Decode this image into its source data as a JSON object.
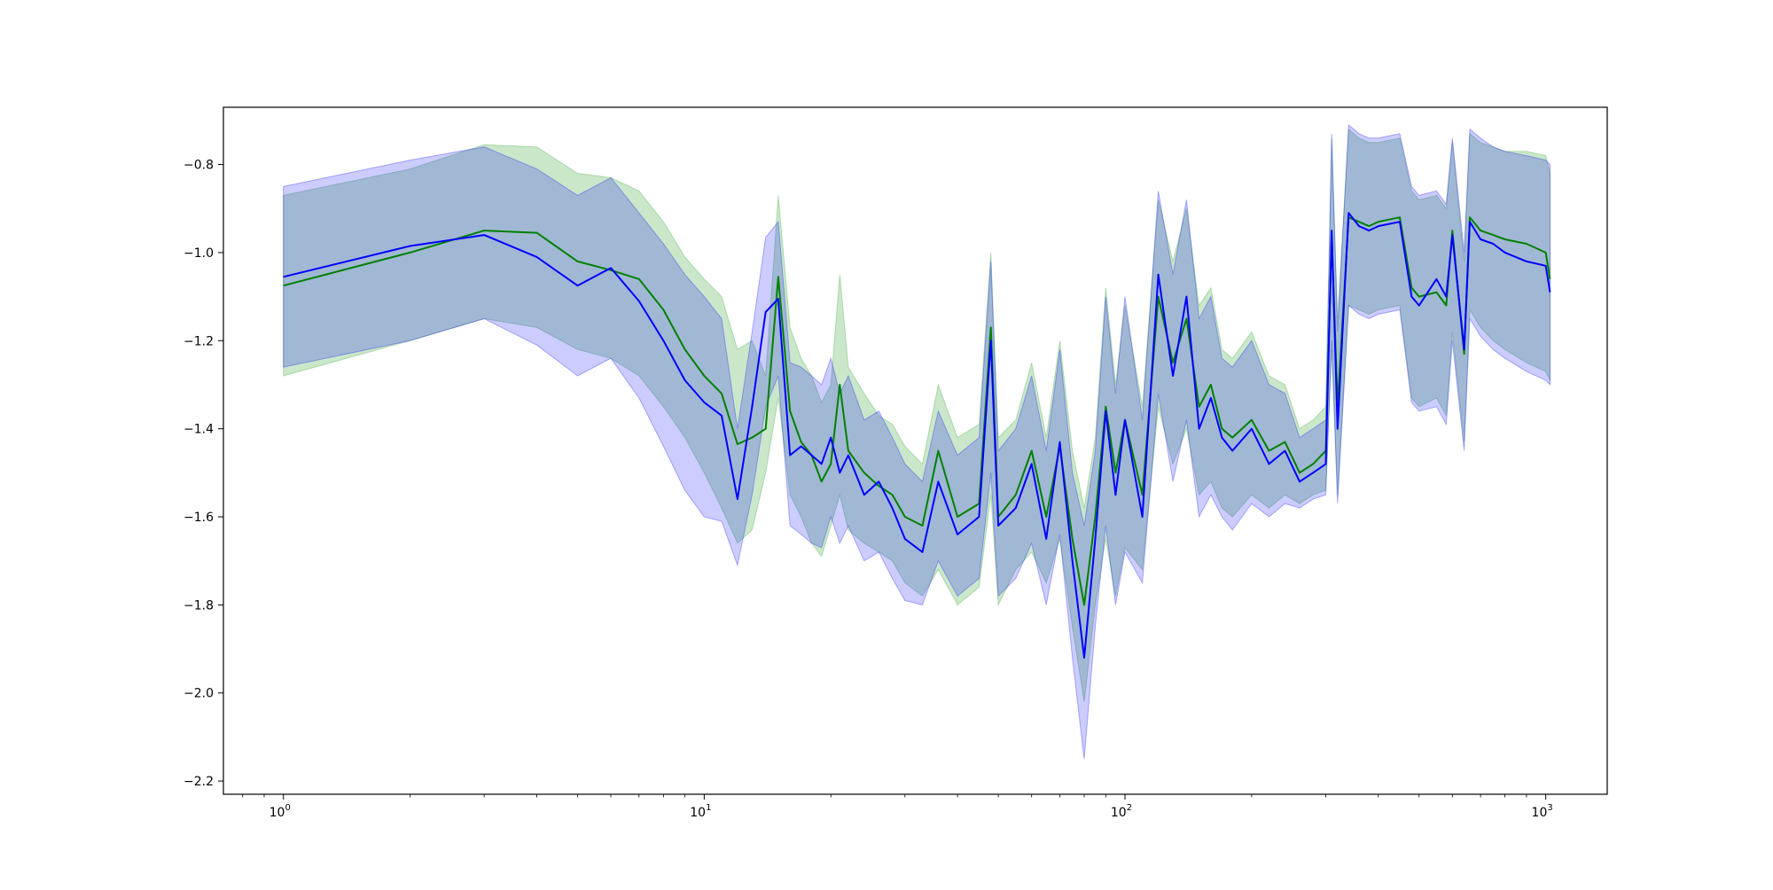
{
  "chart_data": {
    "type": "line",
    "title": "",
    "xlabel": "",
    "ylabel": "",
    "xscale": "log",
    "xlim": [
      0.72,
      1400
    ],
    "ylim": [
      -2.23,
      -0.67
    ],
    "grid": false,
    "x_ticks": [
      {
        "value": 1,
        "base": "10",
        "exp": "0"
      },
      {
        "value": 10,
        "base": "10",
        "exp": "1"
      },
      {
        "value": 100,
        "base": "10",
        "exp": "2"
      },
      {
        "value": 1000,
        "base": "10",
        "exp": "3"
      }
    ],
    "y_ticks": [
      {
        "value": -0.8,
        "label": "−0.8"
      },
      {
        "value": -1.0,
        "label": "−1.0"
      },
      {
        "value": -1.2,
        "label": "−1.2"
      },
      {
        "value": -1.4,
        "label": "−1.4"
      },
      {
        "value": -1.6,
        "label": "−1.6"
      },
      {
        "value": -1.8,
        "label": "−1.8"
      },
      {
        "value": -2.0,
        "label": "−2.0"
      },
      {
        "value": -2.2,
        "label": "−2.2"
      }
    ],
    "series": [
      {
        "color": "#008000",
        "band_color": "#2ca02c",
        "band_opacity": 0.25,
        "x": [
          1,
          2,
          3,
          4,
          5,
          6,
          7,
          8,
          9,
          10,
          11,
          12,
          13,
          14,
          15,
          16,
          17,
          18,
          19,
          20,
          21,
          22,
          24,
          26,
          28,
          30,
          33,
          36,
          40,
          45,
          48,
          50,
          55,
          60,
          65,
          70,
          75,
          80,
          85,
          90,
          95,
          100,
          110,
          120,
          130,
          140,
          150,
          160,
          170,
          180,
          200,
          220,
          240,
          260,
          280,
          300,
          310,
          320,
          340,
          360,
          380,
          400,
          450,
          480,
          500,
          550,
          580,
          600,
          640,
          660,
          700,
          750,
          800,
          900,
          1000,
          1024
        ],
        "y": [
          -1.075,
          -1.0,
          -0.95,
          -0.955,
          -1.02,
          -1.04,
          -1.06,
          -1.13,
          -1.22,
          -1.28,
          -1.32,
          -1.435,
          -1.42,
          -1.4,
          -1.055,
          -1.36,
          -1.43,
          -1.46,
          -1.52,
          -1.48,
          -1.3,
          -1.45,
          -1.5,
          -1.53,
          -1.55,
          -1.6,
          -1.62,
          -1.45,
          -1.6,
          -1.57,
          -1.17,
          -1.6,
          -1.55,
          -1.45,
          -1.6,
          -1.44,
          -1.65,
          -1.8,
          -1.6,
          -1.35,
          -1.5,
          -1.38,
          -1.55,
          -1.1,
          -1.25,
          -1.15,
          -1.35,
          -1.3,
          -1.4,
          -1.42,
          -1.38,
          -1.45,
          -1.43,
          -1.5,
          -1.48,
          -1.45,
          -0.96,
          -1.35,
          -0.92,
          -0.93,
          -0.94,
          -0.93,
          -0.92,
          -1.08,
          -1.1,
          -1.09,
          -1.12,
          -0.95,
          -1.23,
          -0.92,
          -0.95,
          -0.96,
          -0.97,
          -0.98,
          -1.0,
          -1.06
        ],
        "lower": [
          -1.28,
          -1.2,
          -1.15,
          -1.17,
          -1.22,
          -1.24,
          -1.28,
          -1.35,
          -1.42,
          -1.5,
          -1.58,
          -1.66,
          -1.63,
          -1.5,
          -1.33,
          -1.55,
          -1.6,
          -1.66,
          -1.69,
          -1.62,
          -1.55,
          -1.63,
          -1.66,
          -1.68,
          -1.7,
          -1.75,
          -1.78,
          -1.72,
          -1.8,
          -1.76,
          -1.55,
          -1.8,
          -1.72,
          -1.68,
          -1.75,
          -1.65,
          -1.85,
          -2.02,
          -1.8,
          -1.65,
          -1.78,
          -1.67,
          -1.72,
          -1.35,
          -1.48,
          -1.4,
          -1.55,
          -1.52,
          -1.58,
          -1.6,
          -1.55,
          -1.58,
          -1.55,
          -1.57,
          -1.55,
          -1.54,
          -1.22,
          -1.55,
          -1.12,
          -1.13,
          -1.14,
          -1.13,
          -1.12,
          -1.33,
          -1.35,
          -1.33,
          -1.37,
          -1.18,
          -1.43,
          -1.13,
          -1.17,
          -1.2,
          -1.22,
          -1.25,
          -1.27,
          -1.29
        ],
        "upper": [
          -0.87,
          -0.81,
          -0.755,
          -0.76,
          -0.82,
          -0.83,
          -0.86,
          -0.93,
          -1.01,
          -1.06,
          -1.1,
          -1.22,
          -1.2,
          -1.28,
          -0.87,
          -1.17,
          -1.24,
          -1.28,
          -1.34,
          -1.3,
          -1.05,
          -1.26,
          -1.32,
          -1.37,
          -1.39,
          -1.44,
          -1.48,
          -1.3,
          -1.42,
          -1.39,
          -1.0,
          -1.42,
          -1.38,
          -1.25,
          -1.42,
          -1.2,
          -1.45,
          -1.58,
          -1.42,
          -1.08,
          -1.3,
          -1.12,
          -1.35,
          -0.88,
          -1.02,
          -0.9,
          -1.12,
          -1.08,
          -1.22,
          -1.24,
          -1.18,
          -1.28,
          -1.3,
          -1.4,
          -1.38,
          -1.35,
          -0.74,
          -1.15,
          -0.72,
          -0.74,
          -0.75,
          -0.75,
          -0.74,
          -0.86,
          -0.88,
          -0.87,
          -0.9,
          -0.75,
          -1.02,
          -0.73,
          -0.75,
          -0.76,
          -0.77,
          -0.77,
          -0.78,
          -0.82
        ]
      },
      {
        "color": "#0000ff",
        "band_color": "#0000ff",
        "band_opacity": 0.2,
        "x": [
          1,
          2,
          3,
          4,
          5,
          6,
          7,
          8,
          9,
          10,
          11,
          12,
          13,
          14,
          15,
          16,
          17,
          18,
          19,
          20,
          21,
          22,
          24,
          26,
          28,
          30,
          33,
          36,
          40,
          45,
          48,
          50,
          55,
          60,
          65,
          70,
          75,
          80,
          85,
          90,
          95,
          100,
          110,
          120,
          130,
          140,
          150,
          160,
          170,
          180,
          200,
          220,
          240,
          260,
          280,
          300,
          310,
          320,
          340,
          360,
          380,
          400,
          450,
          480,
          500,
          550,
          580,
          600,
          640,
          660,
          700,
          750,
          800,
          900,
          1000,
          1024
        ],
        "y": [
          -1.055,
          -0.985,
          -0.96,
          -1.01,
          -1.075,
          -1.035,
          -1.11,
          -1.2,
          -1.29,
          -1.34,
          -1.37,
          -1.56,
          -1.35,
          -1.135,
          -1.105,
          -1.46,
          -1.44,
          -1.46,
          -1.48,
          -1.42,
          -1.5,
          -1.46,
          -1.55,
          -1.52,
          -1.58,
          -1.65,
          -1.68,
          -1.52,
          -1.64,
          -1.6,
          -1.2,
          -1.62,
          -1.58,
          -1.48,
          -1.65,
          -1.43,
          -1.7,
          -1.92,
          -1.65,
          -1.36,
          -1.55,
          -1.38,
          -1.6,
          -1.05,
          -1.28,
          -1.1,
          -1.4,
          -1.33,
          -1.42,
          -1.45,
          -1.4,
          -1.48,
          -1.45,
          -1.52,
          -1.5,
          -1.48,
          -0.95,
          -1.4,
          -0.91,
          -0.94,
          -0.95,
          -0.94,
          -0.93,
          -1.1,
          -1.12,
          -1.06,
          -1.1,
          -0.96,
          -1.22,
          -0.93,
          -0.97,
          -0.98,
          -1.0,
          -1.02,
          -1.03,
          -1.09
        ],
        "lower": [
          -1.26,
          -1.2,
          -1.15,
          -1.21,
          -1.28,
          -1.24,
          -1.33,
          -1.44,
          -1.54,
          -1.6,
          -1.61,
          -1.71,
          -1.55,
          -1.35,
          -1.28,
          -1.62,
          -1.64,
          -1.66,
          -1.67,
          -1.6,
          -1.66,
          -1.62,
          -1.7,
          -1.68,
          -1.74,
          -1.79,
          -1.8,
          -1.7,
          -1.78,
          -1.74,
          -1.5,
          -1.78,
          -1.74,
          -1.66,
          -1.8,
          -1.64,
          -1.92,
          -2.15,
          -1.85,
          -1.62,
          -1.8,
          -1.68,
          -1.75,
          -1.32,
          -1.52,
          -1.38,
          -1.6,
          -1.55,
          -1.6,
          -1.63,
          -1.57,
          -1.6,
          -1.57,
          -1.58,
          -1.56,
          -1.55,
          -1.2,
          -1.57,
          -1.12,
          -1.14,
          -1.15,
          -1.14,
          -1.13,
          -1.34,
          -1.36,
          -1.35,
          -1.39,
          -1.2,
          -1.45,
          -1.15,
          -1.19,
          -1.22,
          -1.24,
          -1.27,
          -1.29,
          -1.3
        ],
        "upper": [
          -0.85,
          -0.79,
          -0.76,
          -0.81,
          -0.87,
          -0.83,
          -0.91,
          -0.98,
          -1.05,
          -1.1,
          -1.15,
          -1.4,
          -1.18,
          -0.965,
          -0.93,
          -1.25,
          -1.26,
          -1.28,
          -1.3,
          -1.24,
          -1.32,
          -1.28,
          -1.38,
          -1.36,
          -1.42,
          -1.48,
          -1.52,
          -1.36,
          -1.46,
          -1.42,
          -1.02,
          -1.45,
          -1.4,
          -1.28,
          -1.45,
          -1.22,
          -1.5,
          -1.62,
          -1.45,
          -1.1,
          -1.32,
          -1.1,
          -1.38,
          -0.86,
          -1.05,
          -0.88,
          -1.15,
          -1.1,
          -1.24,
          -1.26,
          -1.2,
          -1.3,
          -1.32,
          -1.42,
          -1.4,
          -1.38,
          -0.73,
          -1.18,
          -0.71,
          -0.73,
          -0.74,
          -0.74,
          -0.73,
          -0.85,
          -0.87,
          -0.86,
          -0.89,
          -0.74,
          -1.0,
          -0.72,
          -0.74,
          -0.76,
          -0.77,
          -0.78,
          -0.79,
          -0.8
        ]
      }
    ]
  }
}
